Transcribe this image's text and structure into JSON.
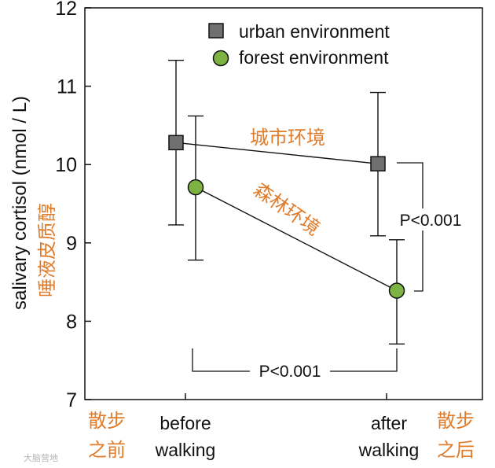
{
  "chart_data": {
    "type": "line",
    "ylabel": "salivary cortisol (nmol / L)",
    "ylabel_cn": "唾液皮质醇",
    "ylim": [
      7,
      12
    ],
    "yticks": [
      "7",
      "8",
      "9",
      "10",
      "11",
      "12"
    ],
    "categories": [
      {
        "label_line1": "before",
        "label_line2": "walking",
        "cn_line1": "散步",
        "cn_line2": "之前"
      },
      {
        "label_line1": "after",
        "label_line2": "walking",
        "cn_line1": "散步",
        "cn_line2": "之后"
      }
    ],
    "series": [
      {
        "name": "urban environment",
        "label_cn": "城市环境",
        "marker": "square",
        "color": "#707070",
        "values": [
          10.28,
          10.01
        ],
        "err_low": [
          9.23,
          9.09
        ],
        "err_high": [
          11.33,
          10.92
        ]
      },
      {
        "name": "forest environment",
        "label_cn": "森林环境",
        "marker": "circle",
        "color": "#7cb342",
        "values": [
          9.71,
          8.39
        ],
        "err_low": [
          8.78,
          7.71
        ],
        "err_high": [
          10.62,
          9.04
        ]
      }
    ],
    "annotations": [
      {
        "text": "P<0.001",
        "between": "urban vs forest, after walking"
      },
      {
        "text": "P<0.001",
        "between": "forest before vs after walking"
      }
    ],
    "legend_position": "top-center",
    "grid": false
  },
  "watermark": "大脑营地"
}
